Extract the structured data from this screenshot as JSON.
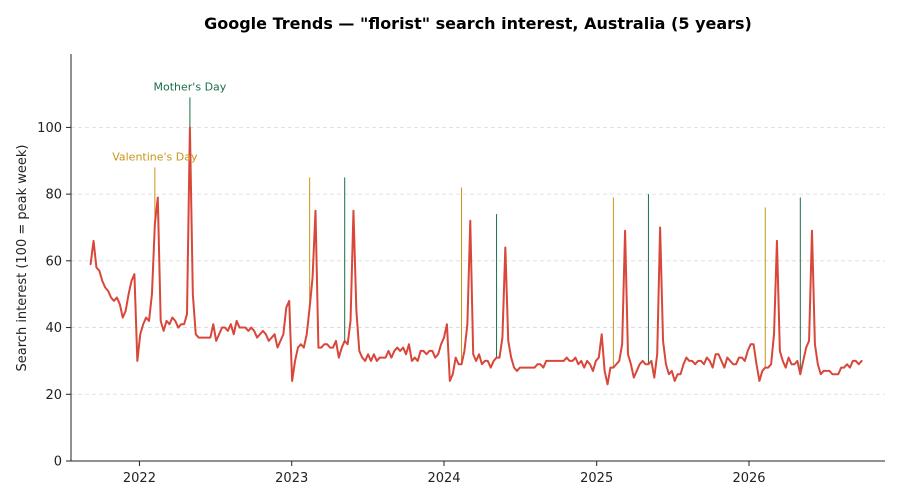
{
  "chart_data": {
    "type": "line",
    "title": "Google Trends — \"florist\" search interest, Australia (5 years)",
    "xlabel": "",
    "ylabel": "Search interest (100 = peak week)",
    "ylim": [
      0,
      122
    ],
    "xlim": [
      "2021-07-21",
      "2026-11-23"
    ],
    "x_ticks": [
      {
        "date": "2022-01-01",
        "label": "2022"
      },
      {
        "date": "2023-01-01",
        "label": "2023"
      },
      {
        "date": "2024-01-01",
        "label": "2024"
      },
      {
        "date": "2025-01-01",
        "label": "2025"
      },
      {
        "date": "2026-01-01",
        "label": "2026"
      }
    ],
    "y_ticks": [
      0,
      20,
      40,
      60,
      80,
      100
    ],
    "grid": "horizontal dashed",
    "line_color": "#d9473a",
    "annotation_colors": {
      "valentines": "#c9941a",
      "mothers": "#1a6e48"
    },
    "annotations": [
      {
        "date": "2022-02-07",
        "value": 79,
        "label": "Valentine's Day",
        "kind": "valentines"
      },
      {
        "date": "2022-05-02",
        "value": 100,
        "label": "Mother's Day",
        "kind": "mothers"
      }
    ],
    "event_markers": [
      {
        "date": "2022-02-07",
        "kind": "valentines",
        "top": 88
      },
      {
        "date": "2022-05-02",
        "kind": "mothers",
        "top": 109
      },
      {
        "date": "2023-02-13",
        "kind": "valentines",
        "top": 85
      },
      {
        "date": "2023-05-08",
        "kind": "mothers",
        "top": 85
      },
      {
        "date": "2024-02-12",
        "kind": "valentines",
        "top": 82
      },
      {
        "date": "2024-05-06",
        "kind": "mothers",
        "top": 74
      },
      {
        "date": "2025-02-10",
        "kind": "valentines",
        "top": 79
      },
      {
        "date": "2025-05-05",
        "kind": "mothers",
        "top": 80
      },
      {
        "date": "2026-02-09",
        "kind": "valentines",
        "top": 76
      },
      {
        "date": "2026-05-04",
        "kind": "mothers",
        "top": 79
      }
    ],
    "series": [
      {
        "start_date": "2021-09-06",
        "interval_days": 7,
        "values": [
          59,
          66,
          58,
          57,
          54,
          52,
          51,
          49,
          48,
          49,
          47,
          43,
          45,
          50,
          54,
          56,
          30,
          38,
          41,
          43,
          42,
          50,
          71,
          79,
          42,
          39,
          42,
          41,
          43,
          42,
          40,
          41,
          41,
          44,
          100,
          50,
          38,
          37,
          37,
          37,
          37,
          37,
          41,
          36,
          38,
          40,
          40,
          39,
          41,
          38,
          42,
          40,
          40,
          40,
          39,
          40,
          39,
          37,
          38,
          39,
          38,
          36,
          37,
          38,
          34,
          36,
          38,
          46,
          48,
          24,
          30,
          34,
          35,
          34,
          38,
          46,
          55,
          75,
          34,
          34,
          35,
          35,
          34,
          34,
          36,
          31,
          34,
          36,
          35,
          42,
          75,
          45,
          33,
          31,
          30,
          32,
          30,
          32,
          30,
          31,
          31,
          31,
          33,
          31,
          33,
          34,
          33,
          34,
          32,
          35,
          30,
          31,
          30,
          33,
          33,
          32,
          33,
          33,
          31,
          32,
          35,
          37,
          41,
          24,
          26,
          31,
          29,
          29,
          33,
          41,
          72,
          32,
          30,
          32,
          29,
          30,
          30,
          28,
          30,
          31,
          31,
          37,
          64,
          36,
          31,
          28,
          27,
          28,
          28,
          28,
          28,
          28,
          28,
          29,
          29,
          28,
          30,
          30,
          30,
          30,
          30,
          30,
          30,
          31,
          30,
          30,
          31,
          29,
          30,
          28,
          30,
          29,
          27,
          30,
          31,
          38,
          27,
          23,
          28,
          28,
          29,
          30,
          35,
          69,
          32,
          29,
          25,
          27,
          29,
          30,
          29,
          29,
          30,
          25,
          32,
          70,
          36,
          29,
          26,
          27,
          24,
          26,
          26,
          29,
          31,
          30,
          30,
          29,
          30,
          30,
          29,
          31,
          30,
          28,
          32,
          32,
          30,
          28,
          31,
          30,
          29,
          29,
          31,
          31,
          30,
          33,
          35,
          35,
          29,
          24,
          27,
          28,
          28,
          29,
          38,
          66,
          33,
          30,
          28,
          31,
          29,
          29,
          30,
          26,
          30,
          34,
          36,
          69,
          35,
          29,
          26,
          27,
          27,
          27,
          26,
          26,
          26,
          28,
          28,
          29,
          28,
          30,
          30,
          29,
          30
        ]
      }
    ]
  }
}
